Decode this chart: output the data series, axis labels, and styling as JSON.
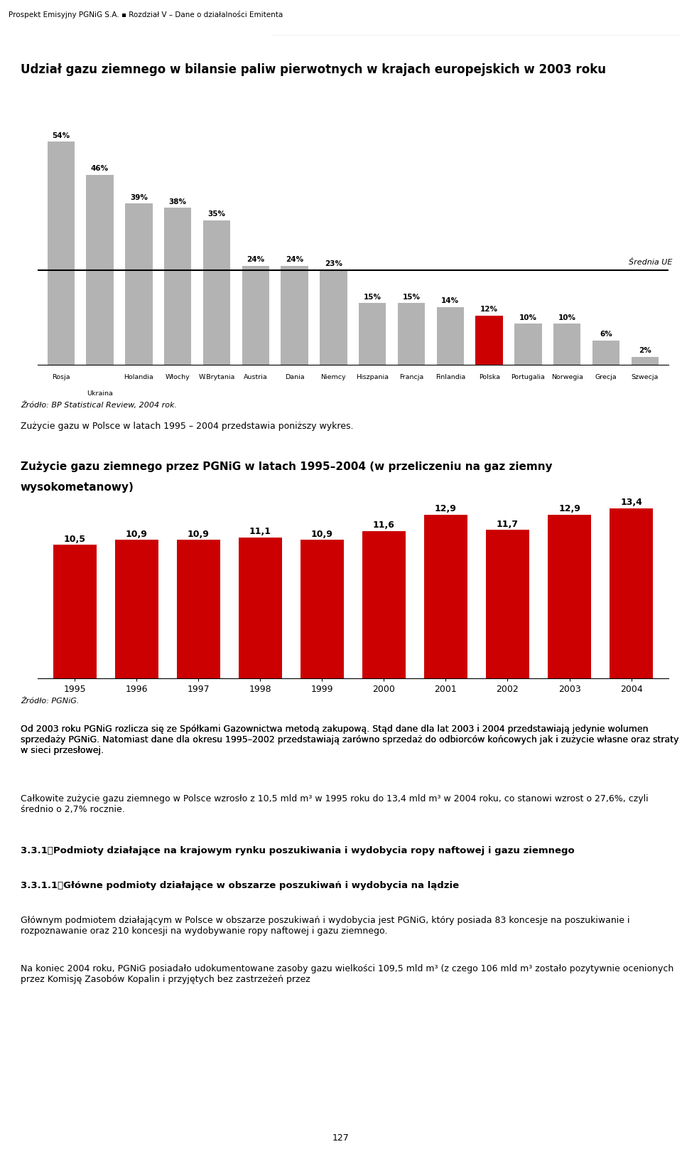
{
  "page_header": "Prospekt Emisyjny PGNiG S.A. ▪ Rozdział V – Dane o działalności Emitenta",
  "chart1_title": "Udział gazu ziemnego w bilansie paliw pierwotnych w krajach europejskich w 2003 roku",
  "chart1_categories_row1": [
    "Rosja",
    "",
    "Holandia",
    "Włochy",
    "W.Brytania",
    "Austria",
    "Dania",
    "Niemcy",
    "Hiszpania",
    "Francja",
    "Finlandia",
    "Polska",
    "Portugalia",
    "Norwegia",
    "Grecja",
    "Szwecja"
  ],
  "chart1_categories_row2": [
    "",
    "Ukraina",
    "",
    "",
    "",
    "",
    "",
    "",
    "",
    "",
    "",
    "",
    "",
    "",
    "",
    ""
  ],
  "chart1_values": [
    54,
    46,
    39,
    38,
    35,
    24,
    24,
    23,
    15,
    15,
    14,
    12,
    10,
    10,
    6,
    2
  ],
  "chart1_colors": [
    "#b3b3b3",
    "#b3b3b3",
    "#b3b3b3",
    "#b3b3b3",
    "#b3b3b3",
    "#b3b3b3",
    "#b3b3b3",
    "#b3b3b3",
    "#b3b3b3",
    "#b3b3b3",
    "#b3b3b3",
    "#cc0000",
    "#b3b3b3",
    "#b3b3b3",
    "#b3b3b3",
    "#b3b3b3"
  ],
  "chart1_avg_line_value": 23,
  "chart1_avg_label": "Średnia UE",
  "chart1_source": "Źródło: BP Statistical Review, 2004 rok.",
  "chart1_note": "Zużycie gazu w Polsce w latach 1995 – 2004 przedstawia poniższy wykres.",
  "chart2_title_line1": "Zużycie gazu ziemnego przez PGNiG w latach 1995–2004 (w przeliczeniu na gaz ziemny",
  "chart2_title_line2": "wysokometanowy)",
  "chart2_years": [
    1995,
    1996,
    1997,
    1998,
    1999,
    2000,
    2001,
    2002,
    2003,
    2004
  ],
  "chart2_values": [
    10.5,
    10.9,
    10.9,
    11.1,
    10.9,
    11.6,
    12.9,
    11.7,
    12.9,
    13.4
  ],
  "chart2_color": "#cc0000",
  "chart2_source": "Źródło: PGNiG.",
  "text1": "Od 2003 roku PGNiG rozlicza się ze Spółkami Gazownictwa metodą zakupową. Stąd dane dla lat 2003 i 2004 przedstawiają jedynie wolumen sprzedaży PGNiG. Natomiast dane dla okresu 1995–2002 przedstawiają zarówno sprzedaż do odbiorców końcowych jak i zużycie własne oraz straty w sieci przesłowej.",
  "text2": "Całkowite zużycie gazu ziemnego w Polsce wzrosło z 10,5 mld m³ w 1995 roku do 13,4 mld m³ w 2004 roku, co stanowi wzrost o 27,6%, czyli średnio o 2,7% rocznie.",
  "section_num": "3.3.1",
  "section_title": "Podmioty działające na krajowym rynku poszukiwania i wydobycia ropy naftowej i gazu ziemnego",
  "subsection_num": "3.3.1.1",
  "subsection_title": "Główne podmioty działające w obszarze poszukiwań i wydobycia na lądzie",
  "text3": "Głównym podmiotem działającym w Polsce w obszarze poszukiwań i wydobycia jest PGNiG, który posiada 83 koncesje na poszukiwanie i rozpoznawanie oraz 210 koncesji na wydobywanie ropy naftowej i gazu ziemnego.",
  "text4": "Na koniec 2004 roku, PGNiG posiadało udokumentowane zasoby gazu wielkości 109,5 mld m³ (z czego 106 mld m³ zostało pozytywnie ocenionych przez Komisję Zasobów Kopalin i przyjętych bez zastrzeżeń przez",
  "page_number": "127"
}
